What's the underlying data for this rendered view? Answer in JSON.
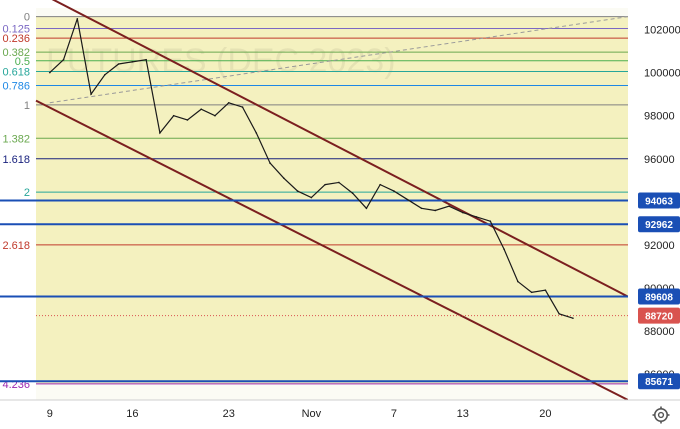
{
  "chart_data": {
    "type": "line",
    "watermark": "FUTURES (DEC 2023)",
    "ylim": [
      84800,
      103000
    ],
    "y_ticks": [
      86000,
      88000,
      90000,
      92000,
      94000,
      96000,
      98000,
      100000,
      102000
    ],
    "x_ticks": [
      "9",
      "16",
      "23",
      "Nov",
      "7",
      "13",
      "20"
    ],
    "grid": false,
    "fib_levels": [
      {
        "label": "0",
        "value": 102600,
        "color": "#808080"
      },
      {
        "label": "0.125",
        "value": 102050,
        "color": "#7b68c4"
      },
      {
        "label": "0.236",
        "value": 101600,
        "color": "#c0392b"
      },
      {
        "label": "0.382",
        "value": 100950,
        "color": "#6aa84f"
      },
      {
        "label": "0.5",
        "value": 100550,
        "color": "#4caf50"
      },
      {
        "label": "0.618",
        "value": 100050,
        "color": "#26a69a"
      },
      {
        "label": "0.786",
        "value": 99400,
        "color": "#1e88e5"
      },
      {
        "label": "1",
        "value": 98500,
        "color": "#808080"
      },
      {
        "label": "1.382",
        "value": 96950,
        "color": "#6aa84f"
      },
      {
        "label": "1.618",
        "value": 96000,
        "color": "#1a237e"
      },
      {
        "label": "2",
        "value": 94450,
        "color": "#26a69a"
      },
      {
        "label": "2.618",
        "value": 92000,
        "color": "#c0392b"
      },
      {
        "label": "4.236",
        "value": 85550,
        "color": "#9c27b0"
      }
    ],
    "horizontal_levels": [
      {
        "label": "94063",
        "value": 94063,
        "color": "#1a4fb5"
      },
      {
        "label": "92962",
        "value": 92962,
        "color": "#1a4fb5"
      },
      {
        "label": "89608",
        "value": 89608,
        "color": "#1a4fb5"
      },
      {
        "label": "85671",
        "value": 85671,
        "color": "#1a4fb5"
      }
    ],
    "last_price": {
      "label": "88720",
      "value": 88720,
      "color": "#d9534f"
    },
    "series": [
      {
        "x": [
          0,
          1,
          2,
          3,
          4,
          5,
          6,
          7,
          8,
          9,
          10,
          11,
          12,
          13,
          14,
          15,
          16,
          17,
          18,
          19,
          20,
          21,
          22,
          23,
          24,
          25,
          26,
          27,
          28,
          29,
          30,
          31,
          32,
          33,
          34,
          35,
          36,
          37,
          38
        ],
        "values": [
          100000,
          100600,
          102500,
          99000,
          99900,
          100400,
          100500,
          100600,
          97200,
          98000,
          97800,
          98300,
          98000,
          98600,
          98400,
          97200,
          95800,
          95100,
          94500,
          94200,
          94800,
          94900,
          94400,
          93700,
          94800,
          94500,
          94100,
          93700,
          93600,
          93800,
          93500,
          93300,
          93100,
          91800,
          90300,
          89800,
          89900,
          88800,
          88600
        ]
      }
    ],
    "channel_lines": [
      {
        "from": [
          -1,
          103800
        ],
        "to": [
          42,
          89600
        ],
        "color": "#7b1f1f"
      },
      {
        "from": [
          -1,
          98700
        ],
        "to": [
          42,
          84800
        ],
        "color": "#7b1f1f"
      }
    ],
    "dashed_line": {
      "from": [
        0,
        98600
      ],
      "to": [
        42,
        102600
      ],
      "color": "#9a9a9a"
    }
  },
  "toolbar": {
    "settings_icon": "gear-icon"
  }
}
